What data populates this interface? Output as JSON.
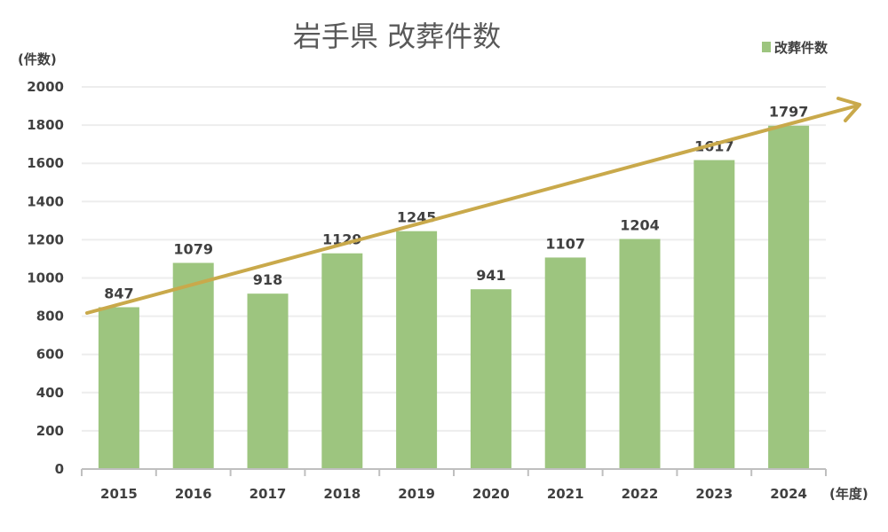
{
  "chart_data": {
    "type": "bar",
    "title": "岩手県 改葬件数",
    "ylabel": "(件数)",
    "xlabel": "(年度)",
    "categories": [
      "2015",
      "2016",
      "2017",
      "2018",
      "2019",
      "2020",
      "2021",
      "2022",
      "2023",
      "2024"
    ],
    "series": [
      {
        "name": "改葬件数",
        "values": [
          847,
          1079,
          918,
          1129,
          1245,
          941,
          1107,
          1204,
          1617,
          1797
        ],
        "color": "#9DC57F"
      }
    ],
    "ylim": [
      0,
      2000
    ],
    "yticks": [
      0,
      200,
      400,
      600,
      800,
      1000,
      1200,
      1400,
      1600,
      1800,
      2000
    ],
    "grid": true,
    "legend": "top-right",
    "data_labels": true,
    "trend_arrow_color": "#C9A94B"
  }
}
